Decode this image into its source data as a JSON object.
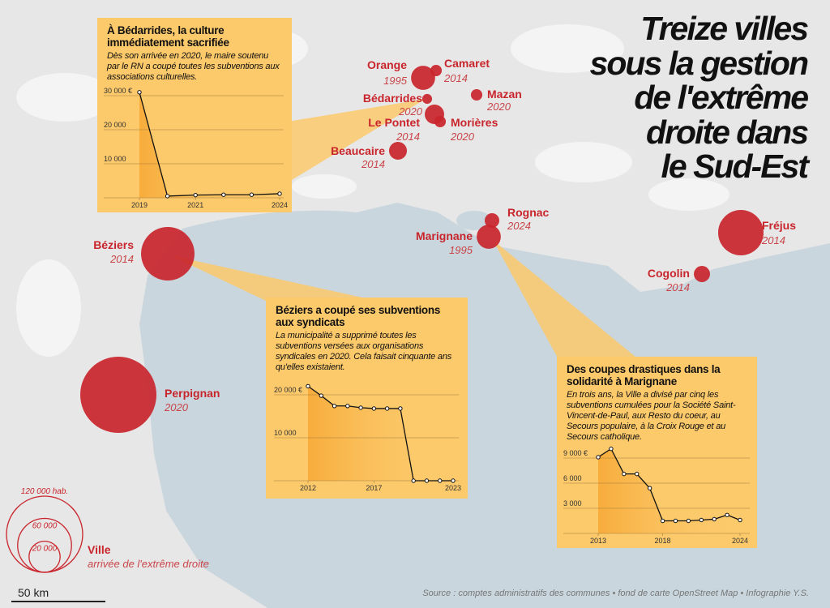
{
  "map": {
    "title_lines": [
      "Treize villes",
      "sous la gestion",
      "de l'extrême",
      "droite dans",
      "le Sud-Est"
    ],
    "source": "Source : comptes administratifs des communes • fond de carte OpenStreet Map • Infographie Y.S.",
    "scale": "50 km",
    "color": "#c9252c",
    "cities": [
      {
        "name": "Orange",
        "year": "1995",
        "population": 12000
      },
      {
        "name": "Camaret",
        "year": "2014",
        "population": 2700
      },
      {
        "name": "Mazan",
        "year": "2020",
        "population": 2700
      },
      {
        "name": "Bédarrides",
        "year": "2020",
        "population": 2000
      },
      {
        "name": "Le Pontet",
        "year": "2014",
        "population": 7800
      },
      {
        "name": "Morières",
        "year": "2020",
        "population": 2700
      },
      {
        "name": "Beaucaire",
        "year": "2014",
        "population": 6600
      },
      {
        "name": "Béziers",
        "year": "2014",
        "population": 59000
      },
      {
        "name": "Perpignan",
        "year": "2020",
        "population": 120000
      },
      {
        "name": "Marignane",
        "year": "1995",
        "population": 12000
      },
      {
        "name": "Rognac",
        "year": "2024",
        "population": 4400
      },
      {
        "name": "Fréjus",
        "year": "2014",
        "population": 42600
      },
      {
        "name": "Cogolin",
        "year": "2014",
        "population": 5400
      }
    ],
    "legend": {
      "circles": [
        {
          "value": 120000,
          "label": "120 000 hab."
        },
        {
          "value": 60000,
          "label": "60 000"
        },
        {
          "value": 20000,
          "label": "20 000"
        }
      ],
      "name": "Ville",
      "year": "arrivée de l'extrême droite"
    }
  },
  "chart_data": [
    {
      "type": "line",
      "title": "À Bédarrides, la culture immédiatement sacrifiée",
      "text": "Dès son arrivée en 2020, le maire soutenu par le RN a coupé toutes les subventions aux associations culturelles.",
      "x": [
        2019,
        2020,
        2021,
        2022,
        2023,
        2024
      ],
      "values": [
        31000,
        500,
        800,
        900,
        900,
        1200
      ],
      "xlim": [
        2019,
        2024
      ],
      "xticks": [
        2019,
        2021,
        2024
      ],
      "ylim": [
        0,
        30000
      ],
      "yticks": [
        {
          "value": 30000,
          "label": "30 000 €"
        },
        {
          "value": 20000,
          "label": "20 000"
        },
        {
          "value": 10000,
          "label": "10 000"
        }
      ]
    },
    {
      "type": "line",
      "title": "Béziers a coupé ses subventions aux syndicats",
      "text": "La municipalité a supprimé toutes les subventions versées aux organisations syndicales en 2020. Cela faisait cinquante ans qu'elles existaient.",
      "x": [
        2012,
        2013,
        2014,
        2015,
        2016,
        2017,
        2018,
        2019,
        2020,
        2021,
        2022,
        2023
      ],
      "values": [
        22000,
        19800,
        17400,
        17400,
        17000,
        16800,
        16800,
        16800,
        0,
        0,
        0,
        0
      ],
      "xlim": [
        2012,
        2023
      ],
      "xticks": [
        2012,
        2017,
        2023
      ],
      "ylim": [
        0,
        20000
      ],
      "yticks": [
        {
          "value": 20000,
          "label": "20 000 €"
        },
        {
          "value": 10000,
          "label": "10 000"
        }
      ]
    },
    {
      "type": "line",
      "title": "Des coupes drastiques dans la solidarité à Marignane",
      "text": "En trois ans, la Ville a divisé par cinq les subventions cumulées pour la Société Saint-Vincent-de-Paul, aux Resto du coeur, au Secours populaire, à la Croix Rouge et au Secours catholique.",
      "x": [
        2013,
        2014,
        2015,
        2016,
        2017,
        2018,
        2019,
        2020,
        2021,
        2022,
        2023,
        2024
      ],
      "values": [
        9100,
        10100,
        7100,
        7100,
        5400,
        1500,
        1500,
        1500,
        1600,
        1700,
        2200,
        1600
      ],
      "xlim": [
        2013,
        2024
      ],
      "xticks": [
        2013,
        2018,
        2024
      ],
      "ylim": [
        0,
        9000
      ],
      "yticks": [
        {
          "value": 9000,
          "label": "9 000 €"
        },
        {
          "value": 6000,
          "label": "6 000"
        },
        {
          "value": 3000,
          "label": "3 000"
        }
      ]
    }
  ]
}
